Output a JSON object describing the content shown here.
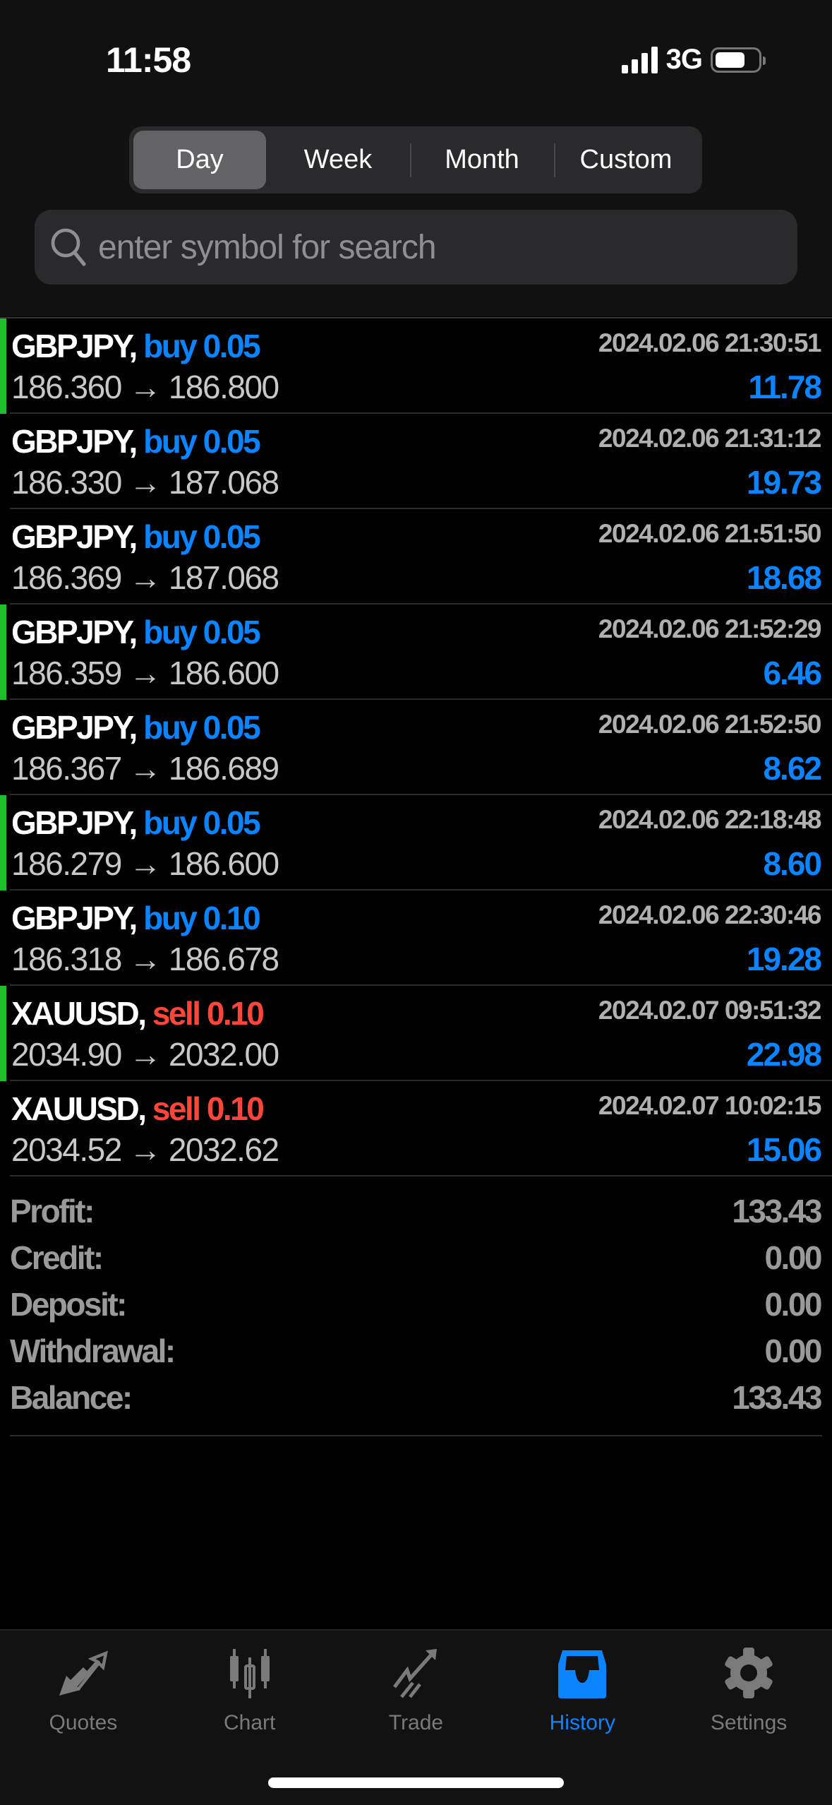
{
  "status_bar": {
    "time": "11:58",
    "network": "3G",
    "battery_level": 0.7
  },
  "period_tabs": [
    {
      "label": "Day",
      "active": true
    },
    {
      "label": "Week"
    },
    {
      "label": "Month"
    },
    {
      "label": "Custom"
    }
  ],
  "search": {
    "placeholder": "enter symbol for search",
    "value": ""
  },
  "deals": [
    {
      "symbol": "GBPJPY,",
      "side": "buy",
      "volume": "buy 0.05",
      "time": "2024.02.06 21:30:51",
      "prices": "186.360 → 186.800",
      "profit": "11.78",
      "marker": true
    },
    {
      "symbol": "GBPJPY,",
      "side": "buy",
      "volume": "buy 0.05",
      "time": "2024.02.06 21:31:12",
      "prices": "186.330 → 187.068",
      "profit": "19.73",
      "marker": false
    },
    {
      "symbol": "GBPJPY,",
      "side": "buy",
      "volume": "buy 0.05",
      "time": "2024.02.06 21:51:50",
      "prices": "186.369 → 187.068",
      "profit": "18.68",
      "marker": false
    },
    {
      "symbol": "GBPJPY,",
      "side": "buy",
      "volume": "buy 0.05",
      "time": "2024.02.06 21:52:29",
      "prices": "186.359 → 186.600",
      "profit": "6.46",
      "marker": true
    },
    {
      "symbol": "GBPJPY,",
      "side": "buy",
      "volume": "buy 0.05",
      "time": "2024.02.06 21:52:50",
      "prices": "186.367 → 186.689",
      "profit": "8.62",
      "marker": false
    },
    {
      "symbol": "GBPJPY,",
      "side": "buy",
      "volume": "buy 0.05",
      "time": "2024.02.06 22:18:48",
      "prices": "186.279 → 186.600",
      "profit": "8.60",
      "marker": true
    },
    {
      "symbol": "GBPJPY,",
      "side": "buy",
      "volume": "buy 0.10",
      "time": "2024.02.06 22:30:46",
      "prices": "186.318 → 186.678",
      "profit": "19.28",
      "marker": false
    },
    {
      "symbol": "XAUUSD,",
      "side": "sell",
      "volume": "sell 0.10",
      "time": "2024.02.07 09:51:32",
      "prices": "2034.90 → 2032.00",
      "profit": "22.98",
      "marker": true
    },
    {
      "symbol": "XAUUSD,",
      "side": "sell",
      "volume": "sell 0.10",
      "time": "2024.02.07 10:02:15",
      "prices": "2034.52 → 2032.62",
      "profit": "15.06",
      "marker": false
    }
  ],
  "summary": [
    {
      "label": "Profit:",
      "value": "133.43"
    },
    {
      "label": "Credit:",
      "value": "0.00"
    },
    {
      "label": "Deposit:",
      "value": "0.00"
    },
    {
      "label": "Withdrawal:",
      "value": "0.00"
    },
    {
      "label": "Balance:",
      "value": "133.43"
    }
  ],
  "tabbar": [
    {
      "label": "Quotes",
      "icon": "quotes-arrows-icon"
    },
    {
      "label": "Chart",
      "icon": "candlestick-icon"
    },
    {
      "label": "Trade",
      "icon": "trade-trend-icon"
    },
    {
      "label": "History",
      "icon": "inbox-tray-icon",
      "active": true
    },
    {
      "label": "Settings",
      "icon": "gear-icon"
    }
  ],
  "colors": {
    "buy": "#0a84ff",
    "sell": "#ff453a",
    "profit": "#0a84ff",
    "marker": "#1fbf2a",
    "active_tab": "#0a84ff"
  }
}
